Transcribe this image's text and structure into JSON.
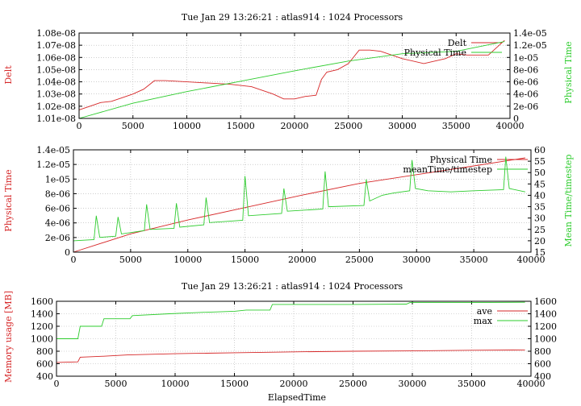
{
  "colors": {
    "red": "#d62728",
    "green": "#2ecc2e",
    "grid": "#b0b0b0"
  },
  "chart_data": [
    {
      "type": "line",
      "title": "Tue Jan 29 13:26:21 : atlas914 : 1024 Processors",
      "x_range": [
        0,
        40000
      ],
      "x_ticks": [
        "0",
        "5000",
        "10000",
        "15000",
        "20000",
        "25000",
        "30000",
        "35000",
        "40000"
      ],
      "y_left": {
        "label": "Delt",
        "range": [
          1.01e-08,
          1.08e-08
        ],
        "ticks": [
          "1.01e-08",
          "1.02e-08",
          "1.03e-08",
          "1.04e-08",
          "1.05e-08",
          "1.06e-08",
          "1.07e-08",
          "1.08e-08"
        ]
      },
      "y_right": {
        "label": "Physical Time",
        "range": [
          0,
          1.4e-05
        ],
        "ticks": [
          "0",
          "2e-06",
          "4e-06",
          "6e-06",
          "8e-06",
          "1e-05",
          "1.2e-05",
          "1.4e-05"
        ]
      },
      "grid": true,
      "legend": "top-right",
      "series": [
        {
          "name": "Delt",
          "axis": "left",
          "color": "red",
          "x": [
            0,
            1000,
            2000,
            3000,
            4000,
            5000,
            6000,
            7000,
            8000,
            10000,
            12000,
            14000,
            16000,
            18000,
            19000,
            20000,
            21000,
            22000,
            22500,
            23000,
            24000,
            25000,
            26000,
            27000,
            28000,
            30000,
            32000,
            34000,
            35000,
            36000,
            38000,
            39500
          ],
          "y": [
            1.017e-08,
            1.02e-08,
            1.023e-08,
            1.024e-08,
            1.027e-08,
            1.03e-08,
            1.034e-08,
            1.041e-08,
            1.041e-08,
            1.04e-08,
            1.039e-08,
            1.038e-08,
            1.036e-08,
            1.03e-08,
            1.026e-08,
            1.026e-08,
            1.028e-08,
            1.029e-08,
            1.042e-08,
            1.048e-08,
            1.05e-08,
            1.055e-08,
            1.066e-08,
            1.066e-08,
            1.065e-08,
            1.059e-08,
            1.055e-08,
            1.059e-08,
            1.063e-08,
            1.062e-08,
            1.062e-08,
            1.074e-08
          ]
        },
        {
          "name": "Physical Time",
          "axis": "right",
          "color": "green",
          "x": [
            0,
            5000,
            10000,
            15000,
            20000,
            25000,
            30000,
            35000,
            39500
          ],
          "y": [
            0,
            2.5e-06,
            4.4e-06,
            6.1e-06,
            7.8e-06,
            9.4e-06,
            1.06e-05,
            1.1e-05,
            1.26e-05
          ]
        }
      ]
    },
    {
      "type": "line",
      "x_range": [
        0,
        40000
      ],
      "x_ticks": [
        "0",
        "5000",
        "10000",
        "15000",
        "20000",
        "25000",
        "30000",
        "35000",
        "40000"
      ],
      "y_left": {
        "label": "Physical Time",
        "range": [
          0,
          1.4e-05
        ],
        "ticks": [
          "0",
          "2e-06",
          "4e-06",
          "6e-06",
          "8e-06",
          "1e-05",
          "1.2e-05",
          "1.4e-05"
        ]
      },
      "y_right": {
        "label": "Mean Time/timestep",
        "range": [
          15,
          60
        ],
        "ticks": [
          "15",
          "20",
          "25",
          "30",
          "35",
          "40",
          "45",
          "50",
          "55",
          "60"
        ]
      },
      "grid": true,
      "legend": "top-right",
      "series": [
        {
          "name": "Physical Time",
          "axis": "left",
          "color": "red",
          "x": [
            0,
            5000,
            10000,
            15000,
            20000,
            25000,
            30000,
            35000,
            39500
          ],
          "y": [
            0,
            2.5e-06,
            4.4e-06,
            6.1e-06,
            7.8e-06,
            9.4e-06,
            1.06e-05,
            1.18e-05,
            1.29e-05
          ]
        },
        {
          "name": "meanTime/timestep",
          "axis": "right",
          "color": "green",
          "x": [
            0,
            1800,
            2000,
            2300,
            3700,
            3900,
            4200,
            6200,
            6400,
            6700,
            8800,
            9000,
            9300,
            11400,
            11600,
            11900,
            14800,
            15000,
            15300,
            18200,
            18400,
            18700,
            21800,
            22000,
            22300,
            25400,
            25600,
            25900,
            27000,
            28000,
            29400,
            29600,
            29900,
            31000,
            33000,
            35000,
            37600,
            37800,
            38100,
            39500
          ],
          "y": [
            20,
            20.5,
            31,
            21.5,
            22,
            30.5,
            23,
            24.5,
            36,
            25,
            25.5,
            36.5,
            26,
            27,
            39,
            28,
            29,
            48.5,
            31,
            32,
            43,
            33,
            34,
            50.5,
            35,
            35.5,
            47,
            37.5,
            40,
            41,
            42,
            55.5,
            43,
            42,
            41.5,
            42,
            42.5,
            57,
            43,
            41.5
          ]
        }
      ]
    },
    {
      "type": "line",
      "title": "Tue Jan 29 13:26:21 : atlas914 : 1024 Processors",
      "xlabel": "ElapsedTime",
      "x_range": [
        0,
        40000
      ],
      "x_ticks": [
        "0",
        "5000",
        "10000",
        "15000",
        "20000",
        "25000",
        "30000",
        "35000",
        "40000"
      ],
      "y_left": {
        "label": "Memory usage [MB]",
        "range": [
          400,
          1600
        ],
        "ticks": [
          "400",
          "600",
          "800",
          "1000",
          "1200",
          "1400",
          "1600"
        ]
      },
      "y_right": {
        "label": "",
        "range": [
          400,
          1600
        ],
        "ticks": [
          "400",
          "600",
          "800",
          "1000",
          "1200",
          "1400",
          "1600"
        ]
      },
      "grid": true,
      "legend": "top-right",
      "series": [
        {
          "name": "ave",
          "color": "red",
          "x": [
            0,
            1800,
            2000,
            4000,
            6000,
            10000,
            15000,
            20000,
            25000,
            30000,
            35000,
            39500
          ],
          "y": [
            620,
            630,
            705,
            720,
            740,
            760,
            775,
            790,
            800,
            805,
            815,
            820
          ]
        },
        {
          "name": "max",
          "color": "green",
          "x": [
            0,
            1800,
            2000,
            3800,
            4000,
            6200,
            6400,
            9500,
            12000,
            15000,
            16000,
            18000,
            18200,
            25000,
            29500,
            29800,
            35000,
            39500
          ],
          "y": [
            1000,
            1000,
            1200,
            1200,
            1320,
            1320,
            1370,
            1400,
            1420,
            1440,
            1460,
            1460,
            1550,
            1550,
            1555,
            1580,
            1580,
            1585
          ]
        }
      ]
    }
  ]
}
